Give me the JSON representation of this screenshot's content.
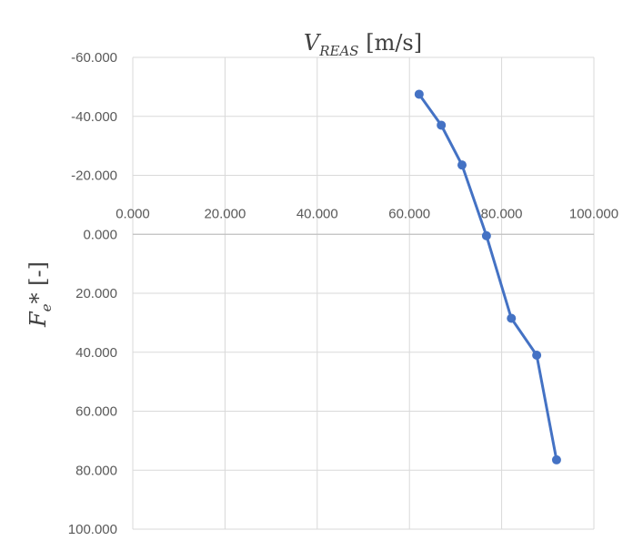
{
  "chart_data": {
    "type": "line",
    "title_main": "V",
    "title_sub": "REAS",
    "title_unit": " [m/s]",
    "ylabel_main": "F",
    "ylabel_sub": "e",
    "ylabel_unit": "* [-]",
    "xlim": [
      0,
      100
    ],
    "ylim": [
      -60,
      100
    ],
    "y_reversed": true,
    "x_axis_crosses_y_at": 0,
    "x_ticks": [
      0,
      20,
      40,
      60,
      80,
      100
    ],
    "x_tick_labels": [
      "0.000",
      "20.000",
      "40.000",
      "60.000",
      "80.000",
      "100.000"
    ],
    "y_ticks": [
      -60,
      -40,
      -20,
      0,
      20,
      40,
      60,
      80,
      100
    ],
    "y_tick_labels": [
      "-60.000",
      "-40.000",
      "-20.000",
      "0.000",
      "20.000",
      "40.000",
      "60.000",
      "80.000",
      "100.000"
    ],
    "grid": true,
    "legend": "none",
    "series": [
      {
        "color": "#4472c4",
        "marker": "circle",
        "x": [
          62.1,
          66.9,
          71.4,
          76.7,
          82.1,
          87.6,
          91.9
        ],
        "y": [
          -47.5,
          -37.0,
          -23.5,
          0.5,
          28.5,
          41.0,
          76.5
        ]
      }
    ]
  }
}
